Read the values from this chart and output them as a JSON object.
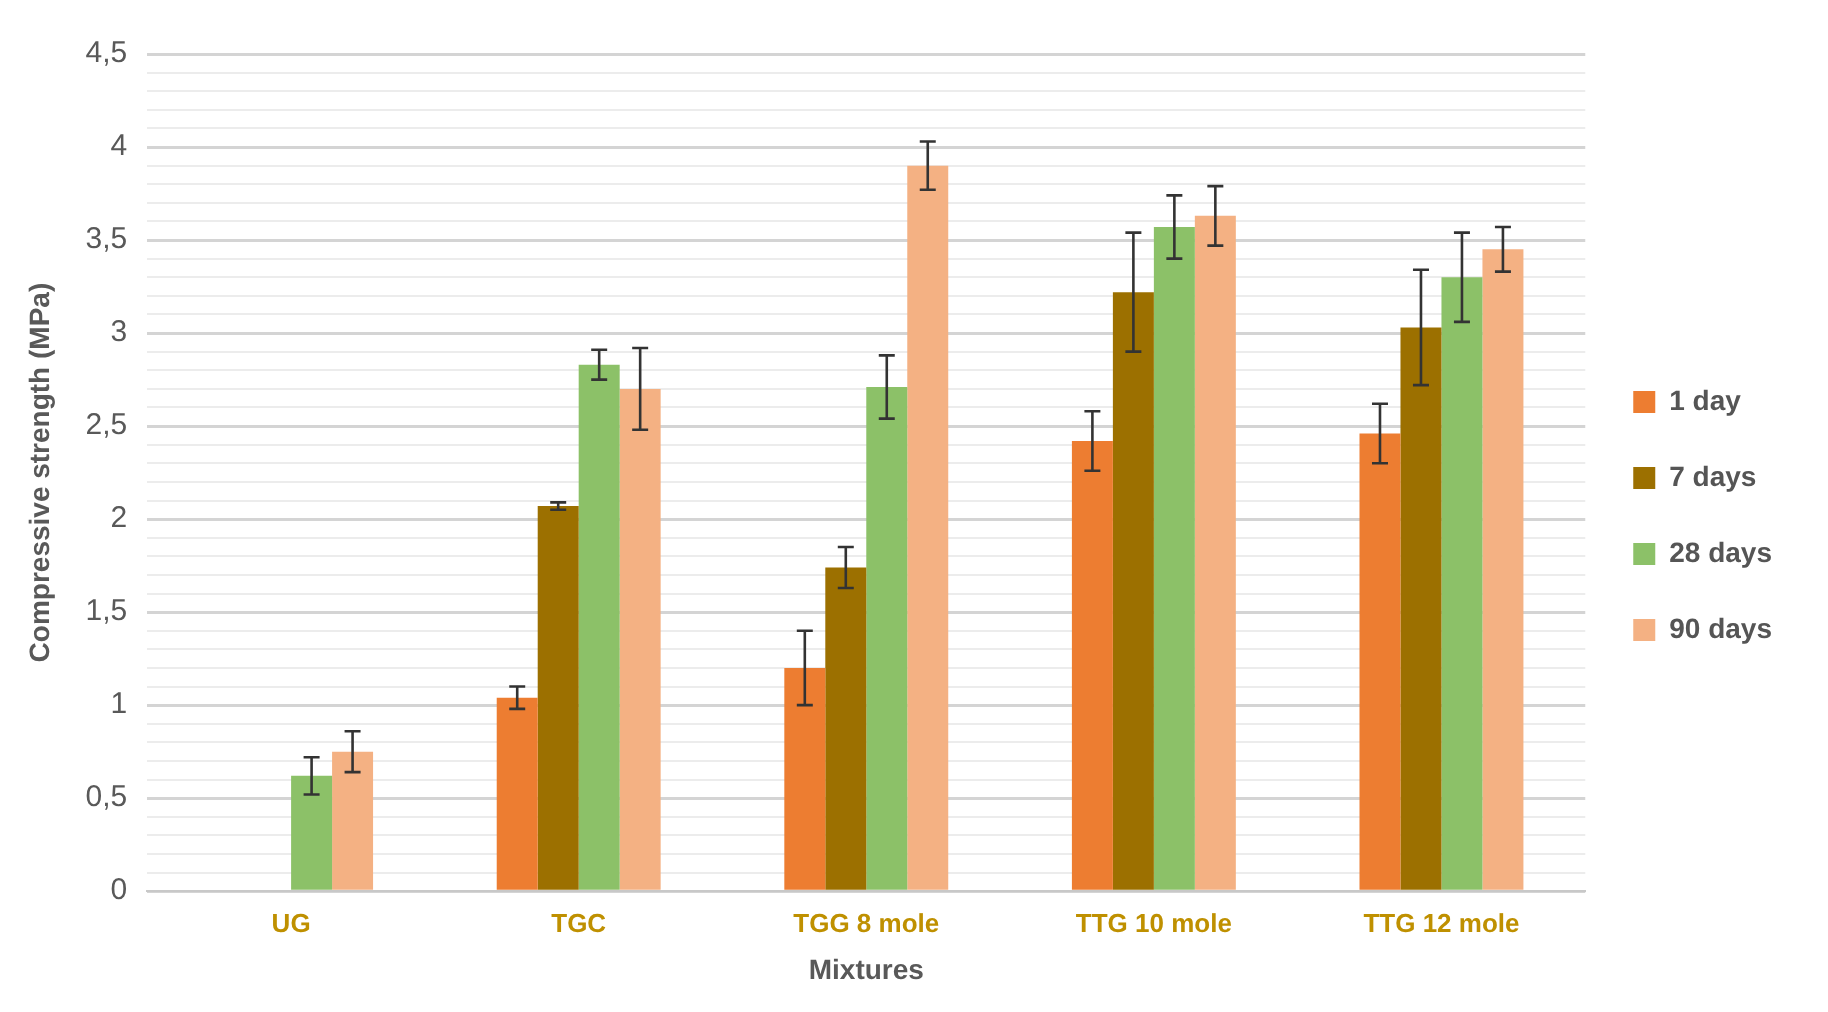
{
  "chart_data": {
    "type": "bar",
    "xlabel": "Mixtures",
    "ylabel": "Compressive strength (MPa)",
    "categories": [
      "UG",
      "TGC",
      "TGG 8 mole",
      "TTG 10 mole",
      "TTG 12 mole"
    ],
    "series": [
      {
        "name": "1 day",
        "color": "#ed7d31",
        "values": [
          null,
          1.04,
          1.2,
          2.42,
          2.46
        ],
        "errors": [
          null,
          0.06,
          0.2,
          0.16,
          0.16
        ]
      },
      {
        "name": "7 days",
        "color": "#9c7000",
        "values": [
          null,
          2.07,
          1.74,
          3.22,
          3.03
        ],
        "errors": [
          null,
          0.02,
          0.11,
          0.32,
          0.31
        ]
      },
      {
        "name": "28 days",
        "color": "#8cc168",
        "values": [
          0.62,
          2.83,
          2.71,
          3.57,
          3.3
        ],
        "errors": [
          0.1,
          0.08,
          0.17,
          0.17,
          0.24
        ]
      },
      {
        "name": "90 days",
        "color": "#f4b183",
        "values": [
          0.75,
          2.7,
          3.9,
          3.63,
          3.45
        ],
        "errors": [
          0.11,
          0.22,
          0.13,
          0.16,
          0.12
        ]
      }
    ],
    "ylim": [
      0,
      4.5
    ],
    "yticks": [
      0,
      {
        "value": 0.1,
        "label": null
      },
      {
        "value": 0.2,
        "label": null
      },
      {
        "value": 0.3,
        "label": null
      },
      {
        "value": 0.4,
        "label": null
      },
      {
        "value": 0.5,
        "label": "0,5"
      },
      {
        "value": 0.6,
        "label": null
      },
      {
        "value": 0.7,
        "label": null
      },
      {
        "value": 0.8,
        "label": null
      },
      {
        "value": 0.9,
        "label": null
      },
      1,
      {
        "value": 1.1,
        "label": null
      },
      {
        "value": 1.2,
        "label": null
      },
      {
        "value": 1.3,
        "label": null
      },
      {
        "value": 1.4,
        "label": null
      },
      {
        "value": 1.5,
        "label": "1,5"
      },
      {
        "value": 1.6,
        "label": null
      },
      {
        "value": 1.7,
        "label": null
      },
      {
        "value": 1.8,
        "label": null
      },
      {
        "value": 1.9,
        "label": null
      },
      2,
      {
        "value": 2.1,
        "label": null
      },
      {
        "value": 2.2,
        "label": null
      },
      {
        "value": 2.3,
        "label": null
      },
      {
        "value": 2.4,
        "label": null
      },
      {
        "value": 2.5,
        "label": "2,5"
      },
      {
        "value": 2.6,
        "label": null
      },
      {
        "value": 2.7,
        "label": null
      },
      {
        "value": 2.8,
        "label": null
      },
      {
        "value": 2.9,
        "label": null
      },
      3,
      {
        "value": 3.1,
        "label": null
      },
      {
        "value": 3.2,
        "label": null
      },
      {
        "value": 3.3,
        "label": null
      },
      {
        "value": 3.4,
        "label": null
      },
      {
        "value": 3.5,
        "label": "3,5"
      },
      {
        "value": 3.6,
        "label": null
      },
      {
        "value": 3.7,
        "label": null
      },
      {
        "value": 3.8,
        "label": null
      },
      {
        "value": 3.9,
        "label": null
      },
      4,
      {
        "value": 4.1,
        "label": null
      },
      {
        "value": 4.2,
        "label": null
      },
      {
        "value": 4.3,
        "label": null
      },
      {
        "value": 4.4,
        "label": null
      },
      {
        "value": 4.5,
        "label": "4,5"
      }
    ],
    "grid": "y",
    "legend": "right"
  }
}
